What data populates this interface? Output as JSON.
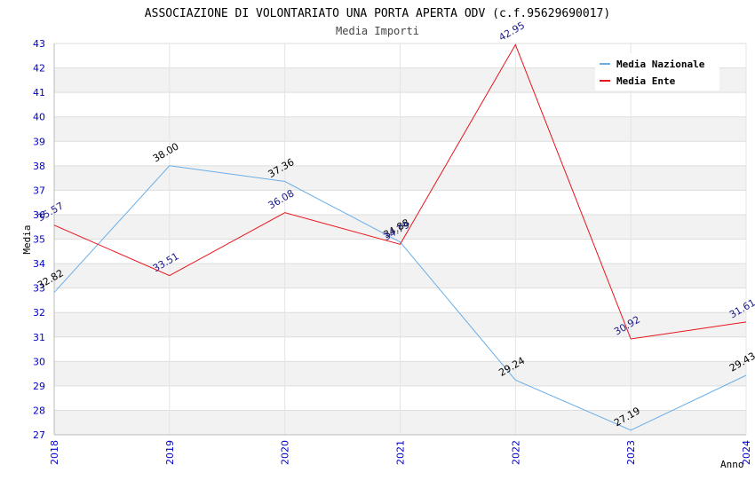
{
  "chart_data": {
    "type": "line",
    "title": "ASSOCIAZIONE DI VOLONTARIATO UNA PORTA APERTA ODV (c.f.95629690017)",
    "subtitle": "Media Importi",
    "xlabel": "Anno",
    "ylabel": "Media",
    "categories": [
      "2018",
      "2019",
      "2020",
      "2021",
      "2022",
      "2023",
      "2024"
    ],
    "ylim": [
      27,
      43
    ],
    "yticks": [
      27,
      28,
      29,
      30,
      31,
      32,
      33,
      34,
      35,
      36,
      37,
      38,
      39,
      40,
      41,
      42,
      43
    ],
    "legend_position": "top-right",
    "series": [
      {
        "name": "Media Nazionale",
        "color": "#6aaee8",
        "label_color": "#000000",
        "values": [
          32.82,
          38.0,
          37.36,
          34.88,
          29.24,
          27.19,
          29.43
        ],
        "labels": [
          "32.82",
          "38.00",
          "37.36",
          "34.88",
          "29.24",
          "27.19",
          "29.43"
        ]
      },
      {
        "name": "Media Ente",
        "color": "#e8141c",
        "label_color": "#1a1a8c",
        "values": [
          35.57,
          33.51,
          36.08,
          34.79,
          42.95,
          30.92,
          31.61
        ],
        "labels": [
          "35.57",
          "33.51",
          "36.08",
          "34.79",
          "42.95",
          "30.92",
          "31.61"
        ]
      }
    ]
  }
}
